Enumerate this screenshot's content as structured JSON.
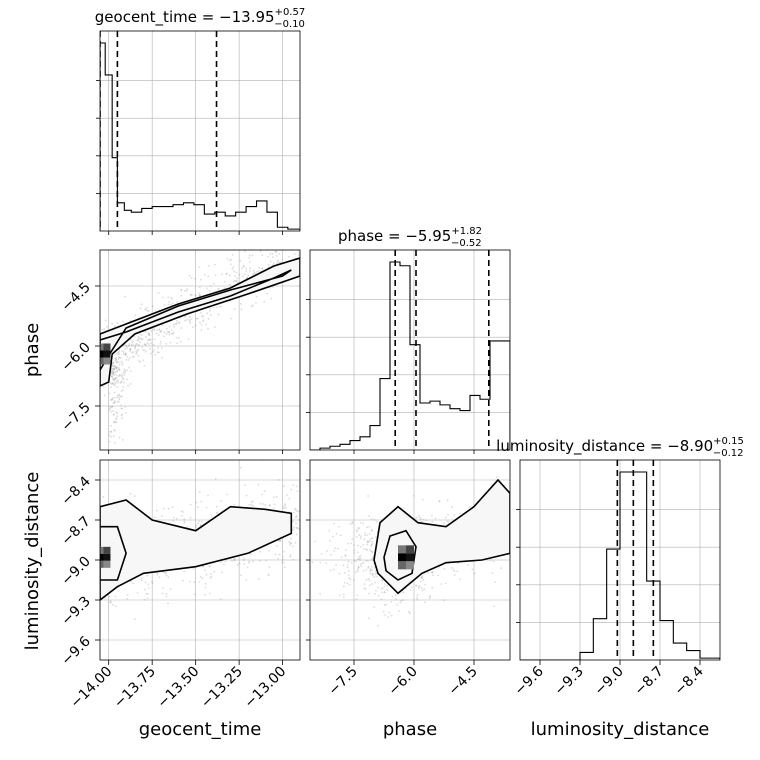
{
  "chart_data": {
    "type": "corner",
    "parameters": [
      "geocent_time",
      "phase",
      "luminosity_distance"
    ],
    "titles": {
      "geocent_time": {
        "prefix": "geocent_time = −13.95",
        "plus": "+0.57",
        "minus": "−0.10"
      },
      "phase": {
        "prefix": "phase = −5.95",
        "plus": "+1.82",
        "minus": "−0.52"
      },
      "luminosity_distance": {
        "prefix": "luminosity_distance = −8.90",
        "plus": "+0.15",
        "minus": "−0.12"
      }
    },
    "ranges": {
      "geocent_time": [
        -14.05,
        -12.9
      ],
      "phase": [
        -8.6,
        -3.6
      ],
      "luminosity_distance": [
        -9.75,
        -8.25
      ]
    },
    "ticks": {
      "geocent_time": [
        -14.0,
        -13.75,
        -13.5,
        -13.25,
        -13.0
      ],
      "phase": [
        -7.5,
        -6.0,
        -4.5
      ],
      "luminosity_distance": [
        -9.6,
        -9.3,
        -9.0,
        -8.7,
        -8.4
      ]
    },
    "tick_labels": {
      "geocent_time": [
        "−14.00",
        "−13.75",
        "−13.50",
        "−13.25",
        "−13.00"
      ],
      "phase": [
        "−7.5",
        "−6.0",
        "−4.5"
      ],
      "luminosity_distance": [
        "−9.6",
        "−9.3",
        "−9.0",
        "−8.7",
        "−8.4"
      ]
    },
    "quantiles": {
      "geocent_time": [
        -14.05,
        -13.95,
        -13.38
      ],
      "phase": [
        -6.47,
        -5.95,
        -4.13
      ],
      "luminosity_distance": [
        -9.02,
        -8.9,
        -8.75
      ]
    },
    "histograms": {
      "geocent_time": {
        "edges": [
          -14.05,
          -14.02,
          -13.98,
          -13.95,
          -13.91,
          -13.87,
          -13.81,
          -13.75,
          -13.69,
          -13.63,
          -13.57,
          -13.51,
          -13.45,
          -13.39,
          -13.33,
          -13.27,
          -13.21,
          -13.15,
          -13.09,
          -13.03,
          -12.97,
          -12.9
        ],
        "counts": [
          1.0,
          0.83,
          0.39,
          0.15,
          0.11,
          0.1,
          0.12,
          0.13,
          0.13,
          0.14,
          0.15,
          0.14,
          0.09,
          0.1,
          0.08,
          0.1,
          0.13,
          0.16,
          0.1,
          0.02,
          0.01
        ]
      },
      "phase": {
        "edges": [
          -8.6,
          -8.35,
          -8.1,
          -7.85,
          -7.6,
          -7.35,
          -7.1,
          -6.85,
          -6.6,
          -6.35,
          -6.1,
          -5.85,
          -5.6,
          -5.35,
          -5.1,
          -4.85,
          -4.6,
          -4.35,
          -4.1,
          -3.85,
          -3.6
        ],
        "counts": [
          0.0,
          0.01,
          0.02,
          0.03,
          0.05,
          0.07,
          0.13,
          0.38,
          1.0,
          0.98,
          0.56,
          0.25,
          0.26,
          0.24,
          0.22,
          0.21,
          0.29,
          0.27,
          0.58,
          0.58
        ]
      },
      "luminosity_distance": {
        "edges": [
          -9.75,
          -9.3,
          -9.2,
          -9.1,
          -9.0,
          -8.9,
          -8.8,
          -8.7,
          -8.6,
          -8.5,
          -8.4,
          -8.25
        ],
        "counts": [
          0.0,
          0.04,
          0.22,
          0.59,
          1.0,
          1.0,
          0.42,
          0.21,
          0.09,
          0.05,
          0.01
        ]
      }
    },
    "mode": {
      "geocent_time": -14.03,
      "phase": -6.2,
      "luminosity_distance": -8.98
    }
  },
  "axis_labels": {
    "phase_y": "phase",
    "luminosity_distance_y": "luminosity_distance",
    "geocent_time_x": "geocent_time",
    "phase_x": "phase",
    "luminosity_distance_x": "luminosity_distance"
  }
}
